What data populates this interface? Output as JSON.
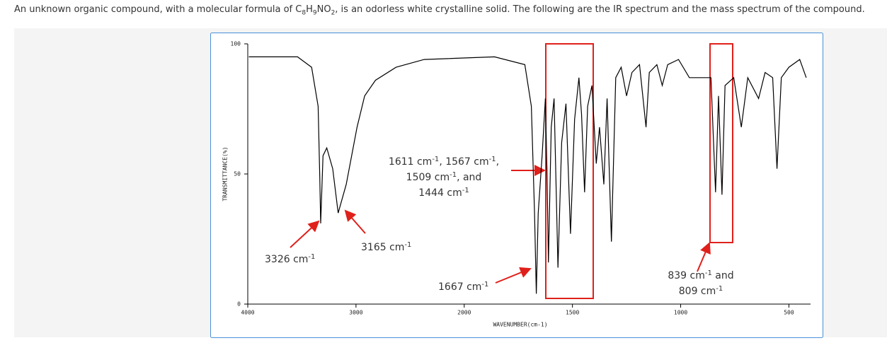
{
  "question": {
    "text_before": "An unknown organic compound, with a molecular formula of ",
    "formula": [
      "C",
      "8",
      "H",
      "9",
      "NO",
      "2"
    ],
    "text_after": ", is an odorless white crystalline solid. The following are the IR spectrum and the mass spectrum of the compound."
  },
  "chart_data": {
    "type": "line",
    "color": "#000000",
    "xlabel": "WAVENUMBER(cm-1)",
    "ylabel": "TRANSMITTANCE(%)",
    "xlim": [
      4000,
      400
    ],
    "ylim": [
      0,
      100
    ],
    "xticks": [
      4000,
      3000,
      2000,
      1500,
      1000,
      500
    ],
    "yticks": [
      0,
      50,
      100
    ],
    "x": [
      3990,
      3540,
      3410,
      3350,
      3335,
      3326,
      3305,
      3270,
      3215,
      3165,
      3090,
      2990,
      2920,
      2820,
      2630,
      2370,
      1860,
      1720,
      1690,
      1675,
      1667,
      1658,
      1640,
      1625,
      1618,
      1611,
      1598,
      1585,
      1567,
      1550,
      1530,
      1509,
      1490,
      1470,
      1458,
      1444,
      1430,
      1410,
      1390,
      1375,
      1355,
      1340,
      1320,
      1300,
      1275,
      1250,
      1225,
      1190,
      1160,
      1145,
      1110,
      1085,
      1060,
      1010,
      960,
      860,
      839,
      825,
      809,
      795,
      755,
      720,
      690,
      640,
      610,
      575,
      555,
      535,
      500,
      450,
      420
    ],
    "values": [
      95,
      95,
      91,
      76,
      49,
      31,
      57,
      60,
      52,
      35,
      46,
      68,
      80,
      86,
      91,
      94,
      95,
      92,
      76,
      35,
      4,
      35,
      57,
      79,
      52,
      16,
      68,
      79,
      14,
      62,
      77,
      27,
      71,
      87,
      73,
      43,
      76,
      84,
      54,
      68,
      46,
      79,
      24,
      87,
      91,
      80,
      89,
      92,
      68,
      89,
      92,
      84,
      92,
      94,
      87,
      87,
      43,
      80,
      42,
      84,
      87,
      68,
      87,
      79,
      89,
      87,
      52,
      87,
      91,
      94,
      87
    ],
    "annotations": [
      {
        "lines": [
          [
            "3326 cm",
            "-1"
          ]
        ]
      },
      {
        "lines": [
          [
            "3165 cm",
            "-1"
          ]
        ]
      },
      {
        "lines": [
          [
            "1611 cm",
            "-1",
            ", 1567 cm",
            "-1",
            ","
          ],
          [
            "1509 cm",
            "-1",
            ", and"
          ],
          [
            "1444 cm",
            "-1"
          ]
        ]
      },
      {
        "lines": [
          [
            "1667 cm",
            "-1"
          ]
        ]
      },
      {
        "lines": [
          [
            "839 cm",
            "-1",
            " and"
          ],
          [
            "809 cm",
            "-1"
          ]
        ]
      }
    ]
  }
}
